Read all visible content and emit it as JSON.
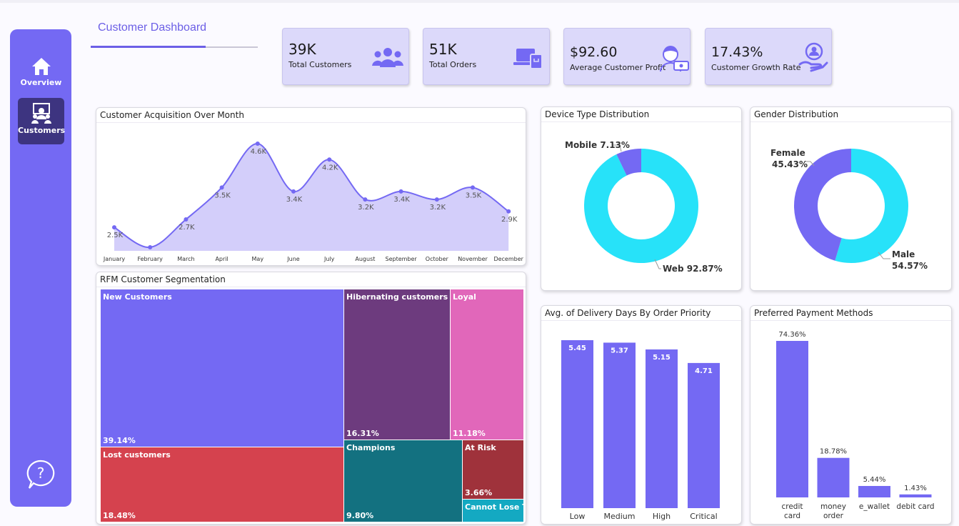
{
  "header": {
    "title": "Customer Dashboard"
  },
  "nav": {
    "overview": "Overview",
    "customers": "Customers"
  },
  "kpis": [
    {
      "value": "39K",
      "label": "Total Customers",
      "icon": "users-icon"
    },
    {
      "value": "51K",
      "label": "Total Orders",
      "icon": "orders-icon"
    },
    {
      "value": "$92.60",
      "label": "Average Customer Profit",
      "icon": "profit-icon"
    },
    {
      "value": "17.43%",
      "label": "Customer Growth Rate",
      "icon": "growth-icon"
    }
  ],
  "colors": {
    "accent": "#7469f3",
    "cyan": "#27e2f9",
    "nav_active": "#3d3480",
    "kpi_bg": "#dcd9fa"
  },
  "panels": {
    "acquisition": "Customer Acquisition Over Month",
    "device": "Device Type Distribution",
    "gender": "Gender Distribution",
    "rfm": "RFM Customer Segmentation",
    "delivery": "Avg. of Delivery Days By Order Priority",
    "payment": "Preferred Payment Methods"
  },
  "chart_data": [
    {
      "type": "area",
      "title": "Customer Acquisition Over Month",
      "categories": [
        "January",
        "February",
        "March",
        "April",
        "May",
        "June",
        "July",
        "August",
        "September",
        "October",
        "November",
        "December"
      ],
      "values": [
        2.5,
        2.0,
        2.7,
        3.5,
        4.6,
        3.4,
        4.2,
        3.2,
        3.4,
        3.2,
        3.5,
        2.9
      ],
      "data_labels": [
        "2.5K",
        "",
        "2.7K",
        "3.5K",
        "4.6K",
        "3.4K",
        "4.2K",
        "3.2K",
        "3.4K",
        "3.2K",
        "3.5K",
        "2.9K"
      ]
    },
    {
      "type": "pie",
      "title": "Device Type Distribution",
      "categories": [
        "Mobile",
        "Web"
      ],
      "values": [
        7.13,
        92.87
      ],
      "labels": [
        "Mobile 7.13%",
        "Web 92.87%"
      ]
    },
    {
      "type": "pie",
      "title": "Gender Distribution",
      "categories": [
        "Female",
        "Male"
      ],
      "values": [
        45.43,
        54.57
      ],
      "labels": [
        "Female",
        "45.43%",
        "Male",
        "54.57%"
      ]
    },
    {
      "type": "table",
      "title": "RFM Customer Segmentation",
      "segments": [
        {
          "name": "New Customers",
          "value": "39.14%"
        },
        {
          "name": "Lost customers",
          "value": "18.48%"
        },
        {
          "name": "Hibernating customers",
          "value": "16.31%"
        },
        {
          "name": "Loyal",
          "value": "11.18%"
        },
        {
          "name": "Champions",
          "value": "9.80%"
        },
        {
          "name": "At Risk",
          "value": "3.66%"
        },
        {
          "name": "Cannot Lose T...",
          "value": ""
        }
      ]
    },
    {
      "type": "bar",
      "title": "Avg. of Delivery Days By Order Priority",
      "categories": [
        "Low",
        "Medium",
        "High",
        "Critical"
      ],
      "values": [
        5.45,
        5.37,
        5.15,
        4.71
      ],
      "labels": [
        "5.45",
        "5.37",
        "5.15",
        "4.71"
      ],
      "ylim": [
        0,
        5.7
      ]
    },
    {
      "type": "bar",
      "title": "Preferred Payment Methods",
      "categories": [
        "credit card",
        "money order",
        "e_wallet",
        "debit card"
      ],
      "category_lines": [
        [
          "credit",
          "card"
        ],
        [
          "money",
          "order"
        ],
        [
          "e_wallet"
        ],
        [
          "debit card"
        ]
      ],
      "values": [
        74.36,
        18.78,
        5.44,
        1.43
      ],
      "labels": [
        "74.36%",
        "18.78%",
        "5.44%",
        "1.43%"
      ]
    }
  ]
}
